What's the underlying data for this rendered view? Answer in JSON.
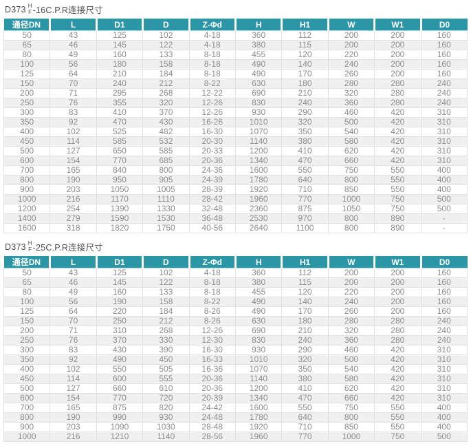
{
  "page": {
    "colors": {
      "header_bg": "#2a96a6",
      "header_text": "#ffffff",
      "row_alt_bg": "#f0f0f0",
      "cell_text": "#8d8d8d",
      "border": "#e2e2e2",
      "title_text": "#4d4d4d"
    }
  },
  "tables": [
    {
      "title": {
        "prefix": "D373",
        "sup": "H",
        "sub": "F",
        "suffix": "-16C.P.R连接尺寸"
      },
      "headers": [
        "通径DN",
        "L",
        "D1",
        "D",
        "Z-Φd",
        "H",
        "H1",
        "W",
        "W1",
        "D0"
      ],
      "rows": [
        [
          "50",
          "43",
          "125",
          "102",
          "4-18",
          "360",
          "112",
          "200",
          "200",
          "160"
        ],
        [
          "65",
          "46",
          "145",
          "122",
          "4-18",
          "380",
          "115",
          "200",
          "200",
          "160"
        ],
        [
          "80",
          "49",
          "160",
          "133",
          "8-18",
          "455",
          "120",
          "220",
          "200",
          "160"
        ],
        [
          "100",
          "56",
          "180",
          "158",
          "8-18",
          "490",
          "140",
          "240",
          "200",
          "160"
        ],
        [
          "125",
          "64",
          "210",
          "184",
          "8-18",
          "490",
          "170",
          "260",
          "200",
          "160"
        ],
        [
          "150",
          "70",
          "240",
          "212",
          "8-22",
          "630",
          "180",
          "280",
          "280",
          "240"
        ],
        [
          "200",
          "71",
          "295",
          "268",
          "12-22",
          "690",
          "210",
          "320",
          "280",
          "240"
        ],
        [
          "250",
          "76",
          "355",
          "320",
          "12-26",
          "830",
          "240",
          "360",
          "280",
          "240"
        ],
        [
          "300",
          "83",
          "410",
          "370",
          "12-26",
          "930",
          "290",
          "460",
          "420",
          "310"
        ],
        [
          "350",
          "92",
          "470",
          "430",
          "16-26",
          "1010",
          "320",
          "500",
          "420",
          "310"
        ],
        [
          "400",
          "102",
          "525",
          "482",
          "16-30",
          "1070",
          "350",
          "540",
          "420",
          "310"
        ],
        [
          "450",
          "114",
          "585",
          "532",
          "20-30",
          "1140",
          "380",
          "580",
          "420",
          "310"
        ],
        [
          "500",
          "127",
          "650",
          "585",
          "20-33",
          "1200",
          "410",
          "620",
          "420",
          "310"
        ],
        [
          "600",
          "154",
          "770",
          "685",
          "20-36",
          "1340",
          "470",
          "660",
          "420",
          "310"
        ],
        [
          "700",
          "165",
          "840",
          "800",
          "24-36",
          "1600",
          "550",
          "750",
          "550",
          "400"
        ],
        [
          "800",
          "190",
          "950",
          "905",
          "24-39",
          "1780",
          "640",
          "800",
          "550",
          "400"
        ],
        [
          "900",
          "203",
          "1050",
          "1005",
          "28-39",
          "1920",
          "710",
          "850",
          "550",
          "400"
        ],
        [
          "1000",
          "216",
          "1170",
          "1110",
          "28-42",
          "1960",
          "770",
          "1000",
          "750",
          "500"
        ],
        [
          "1200",
          "254",
          "1390",
          "1330",
          "32-48",
          "2360",
          "875",
          "1050",
          "750",
          "500"
        ],
        [
          "1400",
          "279",
          "1590",
          "1530",
          "36-48",
          "2530",
          "970",
          "800",
          "890",
          "-"
        ],
        [
          "1600",
          "318",
          "1820",
          "1750",
          "40-56",
          "2640",
          "1100",
          "800",
          "890",
          "-"
        ]
      ]
    },
    {
      "title": {
        "prefix": "D373",
        "sup": "H",
        "sub": "F",
        "suffix": "-25C.P.R连接尺寸"
      },
      "headers": [
        "通径DN",
        "L",
        "D1",
        "D",
        "Z-Φd",
        "H",
        "H1",
        "W",
        "W1",
        "D0"
      ],
      "rows": [
        [
          "50",
          "43",
          "125",
          "102",
          "4-18",
          "360",
          "112",
          "200",
          "200",
          "160"
        ],
        [
          "65",
          "46",
          "145",
          "122",
          "8-18",
          "380",
          "115",
          "200",
          "200",
          "160"
        ],
        [
          "80",
          "49",
          "160",
          "133",
          "8-18",
          "455",
          "120",
          "220",
          "200",
          "160"
        ],
        [
          "100",
          "56",
          "190",
          "158",
          "8-22",
          "490",
          "140",
          "240",
          "200",
          "160"
        ],
        [
          "125",
          "64",
          "220",
          "184",
          "8-26",
          "490",
          "170",
          "260",
          "200",
          "160"
        ],
        [
          "150",
          "70",
          "250",
          "212",
          "8-26",
          "630",
          "180",
          "280",
          "280",
          "240"
        ],
        [
          "200",
          "71",
          "310",
          "268",
          "12-26",
          "690",
          "210",
          "320",
          "280",
          "240"
        ],
        [
          "250",
          "76",
          "370",
          "330",
          "12-30",
          "830",
          "240",
          "360",
          "280",
          "240"
        ],
        [
          "300",
          "83",
          "430",
          "390",
          "16-30",
          "930",
          "290",
          "460",
          "420",
          "310"
        ],
        [
          "350",
          "92",
          "490",
          "450",
          "16-33",
          "1010",
          "320",
          "500",
          "420",
          "310"
        ],
        [
          "400",
          "102",
          "550",
          "505",
          "16-36",
          "1070",
          "350",
          "540",
          "420",
          "310"
        ],
        [
          "450",
          "114",
          "600",
          "555",
          "20-36",
          "1140",
          "380",
          "580",
          "420",
          "310"
        ],
        [
          "500",
          "127",
          "660",
          "610",
          "20-36",
          "1200",
          "410",
          "620",
          "420",
          "310"
        ],
        [
          "600",
          "154",
          "770",
          "720",
          "20-39",
          "1340",
          "470",
          "660",
          "420",
          "310"
        ],
        [
          "700",
          "165",
          "875",
          "820",
          "24-42",
          "1600",
          "550",
          "750",
          "550",
          "400"
        ],
        [
          "800",
          "190",
          "990",
          "930",
          "24-48",
          "1780",
          "640",
          "800",
          "550",
          "400"
        ],
        [
          "900",
          "203",
          "1090",
          "1030",
          "28-48",
          "1920",
          "710",
          "850",
          "550",
          "400"
        ],
        [
          "1000",
          "216",
          "1210",
          "1140",
          "28-56",
          "1960",
          "770",
          "1000",
          "750",
          "500"
        ]
      ]
    }
  ]
}
